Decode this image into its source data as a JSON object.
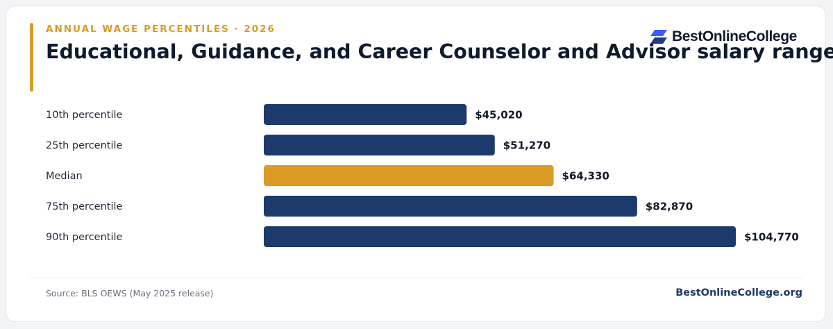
{
  "eyebrow": "ANNUAL WAGE PERCENTILES · 2026",
  "brand": {
    "name": "BestOnlineCollege",
    "icon": "stacked-parallelogram-logo-icon",
    "site": "BestOnlineCollege.org"
  },
  "footer": {
    "source": "Source: BLS OEWS (May 2025 release)"
  },
  "colors": {
    "bar": "#1c3a6b",
    "highlight": "#d99a26",
    "accent": "#d99a26",
    "title": "#0f1b2d",
    "logo_dark": "#1e3a8a",
    "logo_light": "#3b5bff"
  },
  "chart_data": {
    "type": "bar",
    "orientation": "horizontal",
    "title": "Educational, Guidance, and Career Counselor and Advisor salary range",
    "categories": [
      "10th percentile",
      "25th percentile",
      "Median",
      "75th percentile",
      "90th percentile"
    ],
    "values": [
      45020,
      51270,
      64330,
      82870,
      104770
    ],
    "value_labels": [
      "$45,020",
      "$51,270",
      "$64,330",
      "$82,870",
      "$104,770"
    ],
    "highlight_category": "Median",
    "xlim": [
      0,
      104770
    ],
    "grid": false,
    "legend": "none"
  }
}
